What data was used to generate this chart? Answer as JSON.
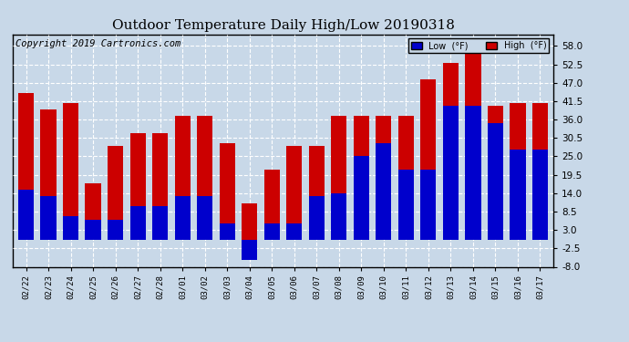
{
  "title": "Outdoor Temperature Daily High/Low 20190318",
  "copyright": "Copyright 2019 Cartronics.com",
  "legend_low": "Low  (°F)",
  "legend_high": "High  (°F)",
  "ylim": [
    -8.0,
    61.5
  ],
  "yticks": [
    -8.0,
    -2.5,
    3.0,
    8.5,
    14.0,
    19.5,
    25.0,
    30.5,
    36.0,
    41.5,
    47.0,
    52.5,
    58.0
  ],
  "dates": [
    "02/22",
    "02/23",
    "02/24",
    "02/25",
    "02/26",
    "02/27",
    "02/28",
    "03/01",
    "03/02",
    "03/03",
    "03/04",
    "03/05",
    "03/06",
    "03/07",
    "03/08",
    "03/09",
    "03/10",
    "03/11",
    "03/12",
    "03/13",
    "03/14",
    "03/15",
    "03/16",
    "03/17"
  ],
  "low": [
    15,
    13,
    7,
    6,
    6,
    10,
    10,
    13,
    13,
    5,
    -6,
    5,
    5,
    13,
    14,
    25,
    29,
    21,
    21,
    40,
    40,
    35,
    27,
    27
  ],
  "high": [
    44,
    39,
    41,
    17,
    28,
    32,
    32,
    37,
    37,
    29,
    11,
    21,
    28,
    28,
    37,
    37,
    37,
    37,
    48,
    53,
    59,
    40,
    41,
    41
  ],
  "low_color": "#0000cc",
  "high_color": "#cc0000",
  "bg_color": "#c8d8e8",
  "plot_bg_color": "#c8d8e8",
  "grid_color": "#ffffff",
  "title_fontsize": 11,
  "copyright_fontsize": 7.5,
  "bar_width": 0.7
}
